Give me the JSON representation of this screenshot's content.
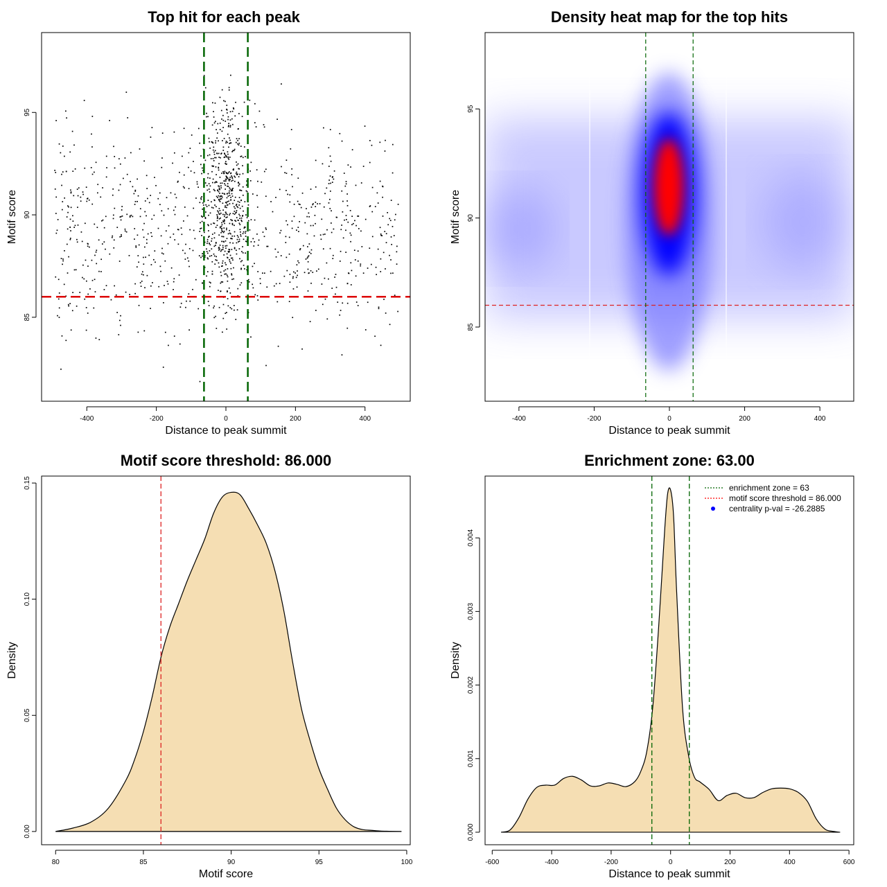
{
  "chart_data": [
    {
      "id": "p1",
      "type": "scatter",
      "title": "Top hit for each peak",
      "xlabel": "Distance to peak summit",
      "ylabel": "Motif score",
      "xlim": [
        -530,
        530
      ],
      "ylim": [
        80.9,
        98.9
      ],
      "xticks": [
        -400,
        -200,
        0,
        200,
        400
      ],
      "yticks": [
        85,
        90,
        95
      ],
      "xtick_labels": [
        "-400",
        "-200",
        "0",
        "200",
        "400"
      ],
      "ytick_labels": [
        "85",
        "90",
        "95"
      ],
      "threshold": 86.0,
      "enrichment_zone": 63,
      "point_count": 1400,
      "notes": "Scatter of ~1400 top hits; central cluster within ±63 bp; horizontal red dashed line at score 86, vertical green dashed lines at ±63"
    },
    {
      "id": "p2",
      "type": "heatmap",
      "title": "Density heat map for the top hits",
      "xlabel": "Distance to peak summit",
      "ylabel": "Motif score",
      "xlim": [
        -490,
        490
      ],
      "ylim": [
        81.6,
        98.5
      ],
      "xticks": [
        -400,
        -200,
        0,
        200,
        400
      ],
      "yticks": [
        85,
        90,
        95
      ],
      "xtick_labels": [
        "-400",
        "-200",
        "0",
        "200",
        "400"
      ],
      "ytick_labels": [
        "85",
        "90",
        "95"
      ],
      "threshold": 86.0,
      "enrichment_zone": 63,
      "hotspot": {
        "x": 0,
        "y": 91,
        "color": "red"
      },
      "colors": [
        "#ffffff",
        "#0000ff",
        "#ff0000"
      ]
    },
    {
      "id": "p3",
      "type": "area",
      "title": "Motif score threshold: 86.000",
      "xlabel": "Motif score",
      "ylabel": "Density",
      "xlim": [
        79.2,
        100.2
      ],
      "ylim": [
        -0.0057,
        0.153
      ],
      "xticks": [
        80,
        85,
        90,
        95,
        100
      ],
      "yticks": [
        0.0,
        0.05,
        0.1,
        0.15
      ],
      "xtick_labels": [
        "80",
        "85",
        "90",
        "95",
        "100"
      ],
      "ytick_labels": [
        "0.00",
        "0.05",
        "0.10",
        "0.15"
      ],
      "threshold": 86.0,
      "fill": "#f5deb3",
      "x": [
        80,
        81,
        82,
        83,
        84,
        84.5,
        85,
        85.5,
        86,
        86.5,
        87,
        87.5,
        88,
        88.5,
        89,
        89.5,
        90,
        90.5,
        91,
        91.5,
        92,
        92.5,
        93,
        93.5,
        94,
        94.5,
        95,
        95.5,
        96,
        96.5,
        97,
        97.5,
        98,
        98.5,
        99,
        99.7
      ],
      "y": [
        0.0,
        0.0015,
        0.004,
        0.01,
        0.022,
        0.031,
        0.043,
        0.058,
        0.075,
        0.088,
        0.098,
        0.108,
        0.117,
        0.126,
        0.137,
        0.144,
        0.146,
        0.145,
        0.139,
        0.132,
        0.124,
        0.112,
        0.095,
        0.073,
        0.053,
        0.039,
        0.027,
        0.018,
        0.01,
        0.005,
        0.002,
        0.0008,
        0.0005,
        0.0002,
        0.0001,
        0.0
      ]
    },
    {
      "id": "p4",
      "type": "area",
      "title": "Enrichment zone: 63.00",
      "xlabel": "Distance to peak summit",
      "ylabel": "Density",
      "xlim": [
        -624,
        616
      ],
      "ylim": [
        -0.00017,
        0.00484
      ],
      "xticks": [
        -600,
        -400,
        -200,
        0,
        200,
        400,
        600
      ],
      "yticks": [
        0.0,
        0.001,
        0.002,
        0.003,
        0.004
      ],
      "xtick_labels": [
        "-600",
        "-400",
        "-200",
        "0",
        "200",
        "400",
        "600"
      ],
      "ytick_labels": [
        "0.000",
        "0.001",
        "0.002",
        "0.003",
        "0.004"
      ],
      "enrichment_zone": 63,
      "fill": "#f5deb3",
      "x": [
        -570,
        -540,
        -510,
        -480,
        -450,
        -420,
        -390,
        -360,
        -330,
        -300,
        -270,
        -240,
        -210,
        -180,
        -150,
        -120,
        -100,
        -80,
        -60,
        -40,
        -20,
        -10,
        0,
        10,
        20,
        40,
        60,
        80,
        100,
        130,
        160,
        190,
        220,
        250,
        280,
        310,
        340,
        370,
        400,
        430,
        460,
        490,
        520,
        550,
        570
      ],
      "y": [
        0.0,
        3e-05,
        0.0002,
        0.00045,
        0.00061,
        0.00064,
        0.00064,
        0.00073,
        0.00076,
        0.00071,
        0.00063,
        0.00063,
        0.00067,
        0.00065,
        0.00062,
        0.00069,
        0.00083,
        0.0011,
        0.0017,
        0.0028,
        0.0041,
        0.0046,
        0.00465,
        0.0043,
        0.0033,
        0.0017,
        0.00105,
        0.00075,
        0.00068,
        0.00058,
        0.00043,
        0.0005,
        0.00053,
        0.00047,
        0.00047,
        0.00054,
        0.00059,
        0.0006,
        0.00059,
        0.00054,
        0.00042,
        0.00018,
        4e-05,
        1e-05,
        0.0
      ],
      "legend": [
        {
          "label": "enrichment zone = 63",
          "color": "#006400",
          "kind": "dotted-line"
        },
        {
          "label": "motif score threshold = 86.000",
          "color": "#ff0000",
          "kind": "dotted-line"
        },
        {
          "label": "centrality p-val = -26.2885",
          "color": "#0000ff",
          "kind": "point"
        }
      ]
    }
  ]
}
